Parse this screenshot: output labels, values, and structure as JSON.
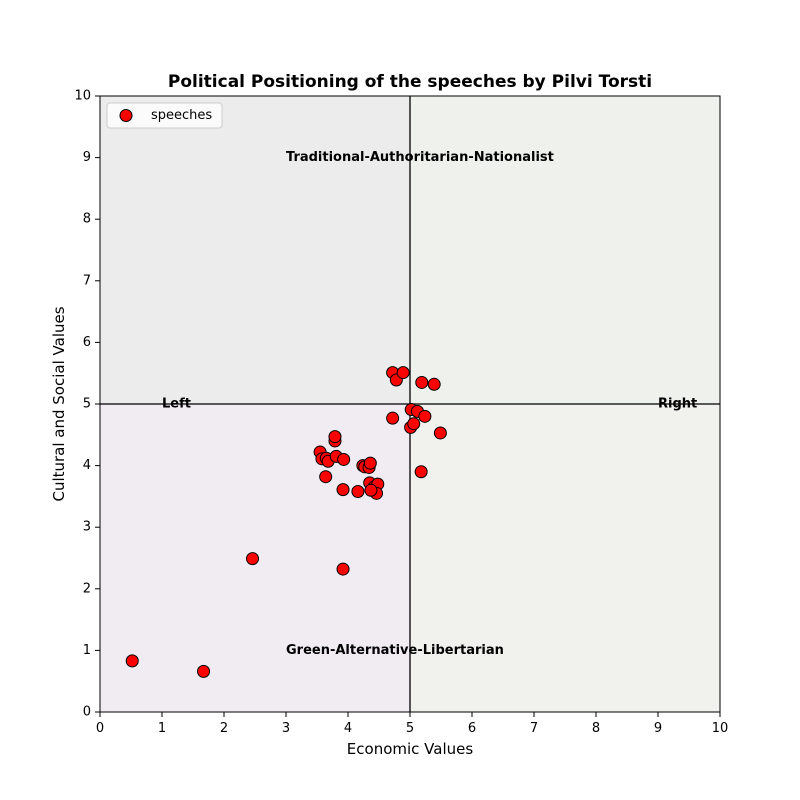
{
  "chart_data": {
    "type": "scatter",
    "title": "Political Positioning of the speeches by Pilvi Torsti",
    "xlabel": "Economic Values",
    "ylabel": "Cultural and Social Values",
    "xlim": [
      0,
      10
    ],
    "ylim": [
      0,
      10
    ],
    "xticks": [
      "0",
      "1",
      "2",
      "3",
      "4",
      "5",
      "6",
      "7",
      "8",
      "9",
      "10"
    ],
    "yticks": [
      "0",
      "1",
      "2",
      "3",
      "4",
      "5",
      "6",
      "7",
      "8",
      "9",
      "10"
    ],
    "grid": false,
    "legend": {
      "position": "upper-left",
      "entries": [
        "speeches"
      ]
    },
    "reference_lines": {
      "x": 5,
      "y": 5
    },
    "quadrant_colors": {
      "top_left": "#ececec",
      "top_right": "#eff1ec",
      "bottom_left": "#f0ecf2",
      "bottom_right": "#f1f2ee"
    },
    "annotations": [
      {
        "text": "Traditional-Authoritarian-Nationalist",
        "x": 3.0,
        "y": 9.0
      },
      {
        "text": "Green-Alternative-Libertarian",
        "x": 3.0,
        "y": 1.0
      },
      {
        "text": "Left",
        "x": 1.0,
        "y": 5.0
      },
      {
        "text": "Right",
        "x": 9.0,
        "y": 5.0
      }
    ],
    "series": [
      {
        "name": "speeches",
        "color": "#ff0000",
        "edgecolor": "#000000",
        "points": [
          [
            0.52,
            0.83
          ],
          [
            1.67,
            0.66
          ],
          [
            2.46,
            2.49
          ],
          [
            3.92,
            2.32
          ],
          [
            3.55,
            4.22
          ],
          [
            3.58,
            4.11
          ],
          [
            3.65,
            4.12
          ],
          [
            3.68,
            4.07
          ],
          [
            3.79,
            4.4
          ],
          [
            3.79,
            4.47
          ],
          [
            3.81,
            4.15
          ],
          [
            3.93,
            4.1
          ],
          [
            3.64,
            3.82
          ],
          [
            3.92,
            3.61
          ],
          [
            4.16,
            3.58
          ],
          [
            4.24,
            4.0
          ],
          [
            4.27,
            3.98
          ],
          [
            4.34,
            3.97
          ],
          [
            4.36,
            4.04
          ],
          [
            4.35,
            3.72
          ],
          [
            4.42,
            3.65
          ],
          [
            4.48,
            3.7
          ],
          [
            4.46,
            3.55
          ],
          [
            4.37,
            3.6
          ],
          [
            4.72,
            5.51
          ],
          [
            4.78,
            5.39
          ],
          [
            4.89,
            5.51
          ],
          [
            5.19,
            5.35
          ],
          [
            5.39,
            5.32
          ],
          [
            4.72,
            4.77
          ],
          [
            5.02,
            4.91
          ],
          [
            5.12,
            4.88
          ],
          [
            5.24,
            4.8
          ],
          [
            5.01,
            4.62
          ],
          [
            5.06,
            4.68
          ],
          [
            5.49,
            4.53
          ],
          [
            5.18,
            3.9
          ]
        ]
      }
    ]
  }
}
